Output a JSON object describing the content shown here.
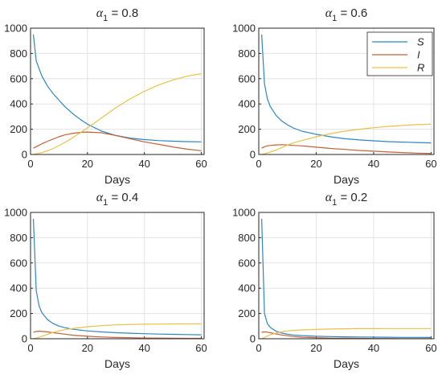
{
  "colors": {
    "S": "#2E86C1",
    "I": "#C0623A",
    "R": "#E8C24A",
    "grid": "#e3e3e3",
    "axis": "#262626"
  },
  "legend": {
    "placement": "top-right",
    "entries": [
      "S",
      "I",
      "R"
    ],
    "shown_in_panel": 1
  },
  "chart_data": [
    {
      "type": "line",
      "title_symbol": "α",
      "title_sub": "1",
      "title_rest": " = 0.8",
      "xlabel": "Days",
      "ylabel": "",
      "xlim": [
        0,
        61
      ],
      "ylim": [
        0,
        1000
      ],
      "xticks": [
        "0",
        "20",
        "40",
        "60"
      ],
      "yticks": [
        "0",
        "200",
        "400",
        "600",
        "800",
        "1000"
      ],
      "grid": true,
      "x": [
        1,
        2,
        4,
        6,
        8,
        10,
        12,
        15,
        18,
        20,
        25,
        30,
        35,
        40,
        45,
        50,
        55,
        60
      ],
      "series": [
        {
          "name": "S",
          "values": [
            950,
            740,
            620,
            540,
            480,
            430,
            380,
            320,
            270,
            240,
            185,
            150,
            130,
            118,
            110,
            105,
            102,
            100
          ]
        },
        {
          "name": "I",
          "values": [
            50,
            62,
            85,
            105,
            122,
            140,
            155,
            168,
            176,
            178,
            172,
            150,
            125,
            100,
            80,
            60,
            42,
            30
          ]
        },
        {
          "name": "R",
          "values": [
            0,
            5,
            15,
            30,
            48,
            70,
            95,
            135,
            180,
            210,
            290,
            370,
            440,
            500,
            550,
            590,
            620,
            640
          ]
        }
      ]
    },
    {
      "type": "line",
      "title_symbol": "α",
      "title_sub": "1",
      "title_rest": " = 0.6",
      "xlabel": "Days",
      "ylabel": "",
      "xlim": [
        0,
        61
      ],
      "ylim": [
        0,
        1000
      ],
      "xticks": [
        "0",
        "20",
        "40",
        "60"
      ],
      "yticks": [
        "0",
        "200",
        "400",
        "600",
        "800",
        "1000"
      ],
      "grid": true,
      "x": [
        1,
        2,
        3,
        4,
        6,
        8,
        10,
        12,
        15,
        20,
        25,
        30,
        35,
        40,
        45,
        50,
        55,
        60
      ],
      "series": [
        {
          "name": "S",
          "values": [
            950,
            560,
            440,
            380,
            310,
            265,
            235,
            210,
            185,
            160,
            140,
            125,
            115,
            108,
            102,
            98,
            95,
            92
          ]
        },
        {
          "name": "I",
          "values": [
            50,
            62,
            68,
            72,
            76,
            78,
            76,
            72,
            68,
            58,
            48,
            40,
            32,
            26,
            20,
            15,
            11,
            8
          ]
        },
        {
          "name": "R",
          "values": [
            0,
            6,
            12,
            20,
            35,
            55,
            75,
            92,
            110,
            140,
            165,
            185,
            200,
            212,
            222,
            230,
            236,
            240
          ]
        }
      ]
    },
    {
      "type": "line",
      "title_symbol": "α",
      "title_sub": "1",
      "title_rest": " = 0.4",
      "xlabel": "Days",
      "ylabel": "",
      "xlim": [
        0,
        61
      ],
      "ylim": [
        0,
        1000
      ],
      "xticks": [
        "0",
        "20",
        "40",
        "60"
      ],
      "yticks": [
        "0",
        "200",
        "400",
        "600",
        "800",
        "1000"
      ],
      "grid": true,
      "x": [
        1,
        2,
        3,
        4,
        6,
        8,
        10,
        12,
        15,
        20,
        25,
        30,
        35,
        40,
        45,
        50,
        55,
        60
      ],
      "series": [
        {
          "name": "S",
          "values": [
            950,
            380,
            260,
            205,
            150,
            120,
            100,
            88,
            75,
            62,
            54,
            48,
            44,
            40,
            37,
            35,
            33,
            31
          ]
        },
        {
          "name": "I",
          "values": [
            50,
            58,
            60,
            58,
            54,
            48,
            42,
            36,
            28,
            20,
            14,
            10,
            8,
            6,
            5,
            4,
            3,
            3
          ]
        },
        {
          "name": "R",
          "values": [
            0,
            5,
            12,
            20,
            35,
            50,
            62,
            72,
            82,
            95,
            104,
            110,
            113,
            115,
            116,
            117,
            118,
            118
          ]
        }
      ]
    },
    {
      "type": "line",
      "title_symbol": "α",
      "title_sub": "1",
      "title_rest": " = 0.2",
      "xlabel": "Days",
      "ylabel": "",
      "xlim": [
        0,
        61
      ],
      "ylim": [
        0,
        1000
      ],
      "xticks": [
        "0",
        "20",
        "40",
        "60"
      ],
      "yticks": [
        "0",
        "200",
        "400",
        "600",
        "800",
        "1000"
      ],
      "grid": true,
      "x": [
        1,
        2,
        3,
        4,
        6,
        8,
        10,
        12,
        15,
        20,
        25,
        30,
        35,
        40,
        45,
        50,
        55,
        60
      ],
      "series": [
        {
          "name": "S",
          "values": [
            950,
            200,
            120,
            90,
            60,
            45,
            36,
            30,
            25,
            20,
            17,
            15,
            14,
            13,
            12,
            11,
            11,
            10
          ]
        },
        {
          "name": "I",
          "values": [
            50,
            55,
            52,
            48,
            38,
            30,
            24,
            18,
            12,
            8,
            5,
            4,
            3,
            2,
            2,
            1,
            1,
            1
          ]
        },
        {
          "name": "R",
          "values": [
            0,
            10,
            22,
            32,
            45,
            55,
            62,
            66,
            70,
            74,
            77,
            79,
            80,
            80,
            81,
            81,
            81,
            81
          ]
        }
      ]
    }
  ]
}
